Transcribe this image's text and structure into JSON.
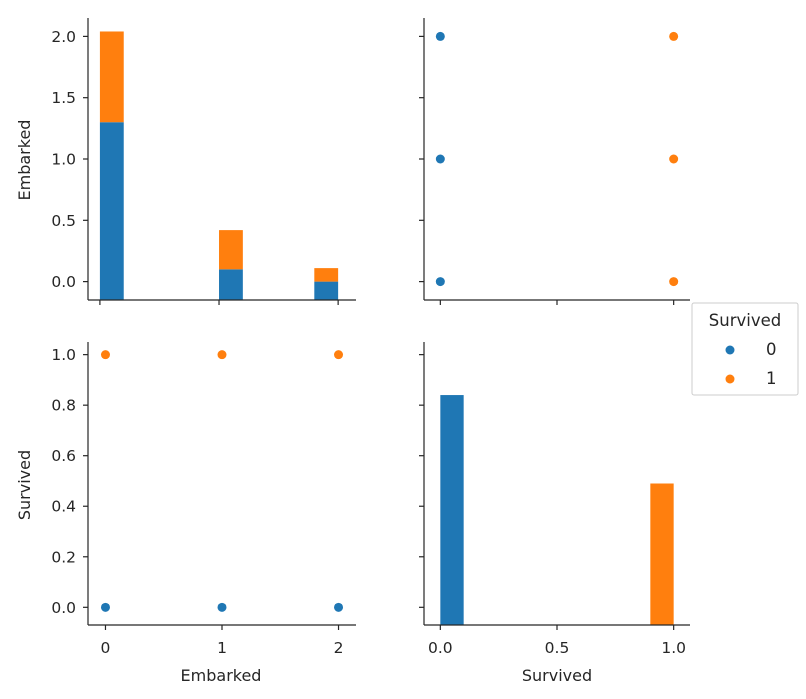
{
  "colors": {
    "class_0": "#1f77b4",
    "class_1": "#ff7f0e",
    "axis": "#262626"
  },
  "legend": {
    "title": "Survived",
    "items": [
      {
        "label": "0",
        "color": "#1f77b4"
      },
      {
        "label": "1",
        "color": "#ff7f0e"
      }
    ]
  },
  "labels": {
    "row0_ylabel": "Embarked",
    "row1_ylabel": "Survived",
    "col0_xlabel": "Embarked",
    "col1_xlabel": "Survived"
  },
  "chart_data": [
    {
      "type": "bar",
      "panel": "Embarked vs Embarked (stacked histogram)",
      "x_bins": [
        {
          "from": 0,
          "to": 0.2
        },
        {
          "from": 1,
          "to": 1.2
        },
        {
          "from": 1.8,
          "to": 2.0
        }
      ],
      "series": [
        {
          "name": "0",
          "values": [
            1.3,
            0.1,
            0.0
          ],
          "bottoms": [
            -0.15,
            -0.15,
            -0.15
          ]
        },
        {
          "name": "1",
          "values": [
            2.04,
            0.42,
            0.11
          ],
          "bottoms": [
            1.3,
            0.1,
            0.0
          ]
        }
      ],
      "xlim": [
        -0.1,
        2.15
      ],
      "ylim": [
        -0.15,
        2.15
      ],
      "yticks": [
        0.0,
        0.5,
        1.0,
        1.5,
        2.0
      ],
      "ytick_labels": [
        "0.0",
        "0.5",
        "1.0",
        "1.5",
        "2.0"
      ],
      "xticks": [
        0,
        1,
        2
      ]
    },
    {
      "type": "scatter",
      "panel": "Survived (x) vs Embarked (y)",
      "series": [
        {
          "name": "0",
          "x": [
            0,
            0,
            0
          ],
          "y": [
            2,
            1,
            0
          ]
        },
        {
          "name": "1",
          "x": [
            1,
            1,
            1
          ],
          "y": [
            2,
            1,
            0
          ]
        }
      ],
      "xlim": [
        -0.07,
        1.07
      ],
      "ylim": [
        -0.15,
        2.15
      ],
      "yticks": [
        0.0,
        0.5,
        1.0,
        1.5,
        2.0
      ],
      "xticks": [
        0.0,
        0.5,
        1.0
      ]
    },
    {
      "type": "scatter",
      "panel": "Embarked (x) vs Survived (y)",
      "series": [
        {
          "name": "0",
          "x": [
            0,
            1,
            2
          ],
          "y": [
            0,
            0,
            0
          ]
        },
        {
          "name": "1",
          "x": [
            0,
            1,
            2
          ],
          "y": [
            1,
            1,
            1
          ]
        }
      ],
      "xlim": [
        -0.15,
        2.15
      ],
      "ylim": [
        -0.07,
        1.05
      ],
      "yticks": [
        0.0,
        0.2,
        0.4,
        0.6,
        0.8,
        1.0
      ],
      "ytick_labels": [
        "0.0",
        "0.2",
        "0.4",
        "0.6",
        "0.8",
        "1.0"
      ],
      "xticks": [
        0,
        1,
        2
      ],
      "xtick_labels": [
        "0",
        "1",
        "2"
      ]
    },
    {
      "type": "bar",
      "panel": "Survived histogram",
      "x_bins": [
        {
          "from": 0.0,
          "to": 0.1
        },
        {
          "from": 0.9,
          "to": 1.0
        }
      ],
      "series": [
        {
          "name": "0",
          "values": [
            0.84,
            0.0
          ]
        },
        {
          "name": "1",
          "values": [
            0.0,
            0.49
          ]
        }
      ],
      "xlim": [
        -0.07,
        1.07
      ],
      "ylim": [
        -0.07,
        1.05
      ],
      "yticks": [
        0.0,
        0.2,
        0.4,
        0.6,
        0.8,
        1.0
      ],
      "xticks": [
        0.0,
        0.5,
        1.0
      ],
      "xtick_labels": [
        "0.0",
        "0.5",
        "1.0"
      ]
    }
  ]
}
